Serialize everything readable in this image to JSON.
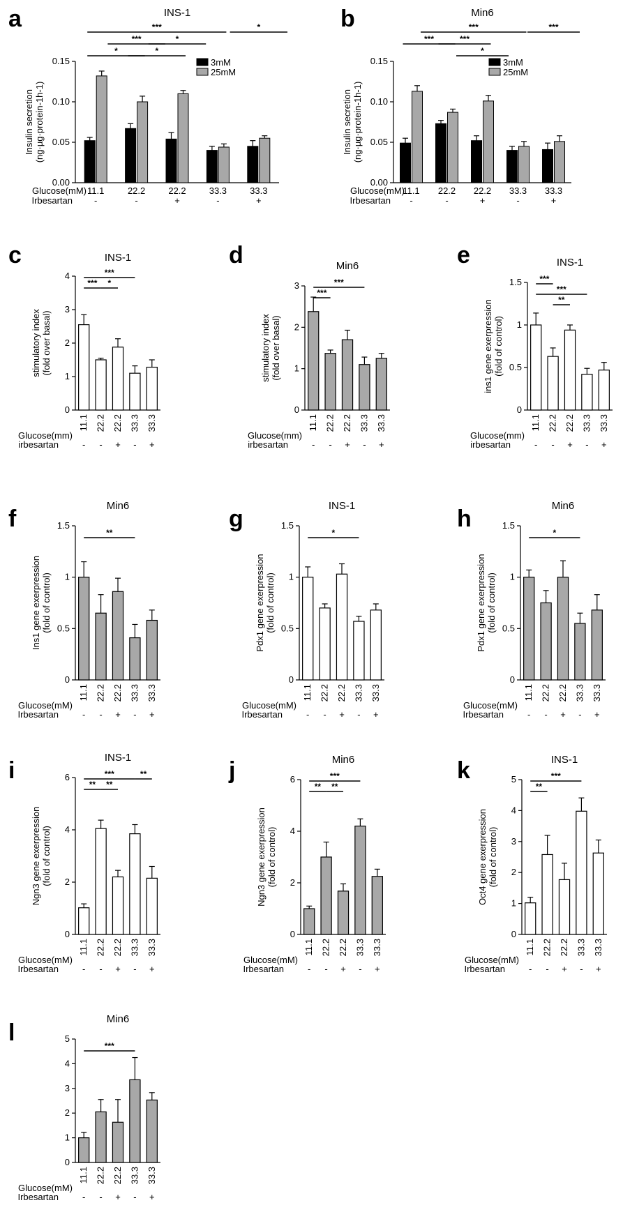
{
  "chart_data": [
    {
      "id": "a",
      "panel_label": "a",
      "type": "bar",
      "title": "INS-1",
      "ylabel": [
        "Insulin secretion",
        "(ng·µg·protein-1h-1)"
      ],
      "ylim": [
        0,
        0.15
      ],
      "yticks": [
        "0.00",
        "0.05",
        "0.10",
        "0.15"
      ],
      "ytick_values": [
        0,
        0.05,
        0.1,
        0.15
      ],
      "groups": [
        "11.1",
        "22.2",
        "22.2",
        "33.3",
        "33.3"
      ],
      "row_labels": [
        "Glucose(mM)",
        "Irbesartan"
      ],
      "irbesartan": [
        "-",
        "-",
        "+",
        "-",
        "+"
      ],
      "series": [
        {
          "name": "3mM",
          "color": "#000000",
          "values": [
            0.052,
            0.067,
            0.054,
            0.04,
            0.045
          ],
          "errors": [
            0.004,
            0.006,
            0.008,
            0.005,
            0.007
          ]
        },
        {
          "name": "25mM",
          "color": "#a8a8a8",
          "values": [
            0.132,
            0.1,
            0.11,
            0.044,
            0.055
          ],
          "errors": [
            0.006,
            0.007,
            0.004,
            0.004,
            0.003
          ]
        }
      ],
      "significance": [
        {
          "label": "***",
          "from": 0,
          "to": 3,
          "level": 3
        },
        {
          "label": "*",
          "from": 3.5,
          "to": 4.5,
          "level": 3
        },
        {
          "label": "***",
          "from": 0.5,
          "to": 1.5,
          "level": 2
        },
        {
          "label": "*",
          "from": 1.5,
          "to": 2.5,
          "level": 2
        },
        {
          "label": "*",
          "from": 0,
          "to": 1,
          "level": 1
        },
        {
          "label": "*",
          "from": 1,
          "to": 2,
          "level": 1
        }
      ]
    },
    {
      "id": "b",
      "panel_label": "b",
      "type": "bar",
      "title": "Min6",
      "ylabel": [
        "Insulin secretion",
        "(ng·µg·protein-1h-1)"
      ],
      "ylim": [
        0,
        0.15
      ],
      "yticks": [
        "0.00",
        "0.05",
        "0.10",
        "0.15"
      ],
      "ytick_values": [
        0,
        0.05,
        0.1,
        0.15
      ],
      "groups": [
        "11.1",
        "22.2",
        "22.2",
        "33.3",
        "33.3"
      ],
      "row_labels": [
        "Glucose(mM)",
        "Irbesartan"
      ],
      "irbesartan": [
        "-",
        "-",
        "+",
        "-",
        "+"
      ],
      "series": [
        {
          "name": "3mM",
          "color": "#000000",
          "values": [
            0.049,
            0.073,
            0.052,
            0.04,
            0.041
          ],
          "errors": [
            0.006,
            0.004,
            0.006,
            0.005,
            0.008
          ]
        },
        {
          "name": "25mM",
          "color": "#a8a8a8",
          "values": [
            0.113,
            0.087,
            0.101,
            0.045,
            0.051
          ],
          "errors": [
            0.007,
            0.004,
            0.007,
            0.006,
            0.007
          ]
        }
      ],
      "significance": [
        {
          "label": "***",
          "from": 0.5,
          "to": 3,
          "level": 3
        },
        {
          "label": "***",
          "from": 3.5,
          "to": 4.5,
          "level": 3
        },
        {
          "label": "***",
          "from": 0,
          "to": 1,
          "level": 2
        },
        {
          "label": "***",
          "from": 1,
          "to": 2,
          "level": 2
        },
        {
          "label": "*",
          "from": 1.5,
          "to": 2.5,
          "level": 1
        }
      ]
    },
    {
      "id": "c",
      "panel_label": "c",
      "type": "bar",
      "title": "INS-1",
      "ylabel": [
        "stimulatory index",
        "(fold over basal)"
      ],
      "ylim": [
        0,
        4
      ],
      "yticks": [
        "0",
        "1",
        "2",
        "3",
        "4"
      ],
      "ytick_values": [
        0,
        1,
        2,
        3,
        4
      ],
      "categories": [
        "11.1",
        "22.2",
        "22.2",
        "33.3",
        "33.3"
      ],
      "row_labels": [
        "Glucose(mm)",
        "irbesartan"
      ],
      "irbesartan": [
        "-",
        "-",
        "+",
        "-",
        "+"
      ],
      "bar_color": "#ffffff",
      "values": [
        2.55,
        1.5,
        1.88,
        1.1,
        1.28
      ],
      "errors": [
        0.3,
        0.05,
        0.25,
        0.22,
        0.22
      ],
      "significance": [
        {
          "label": "***",
          "from": 0,
          "to": 3,
          "level": 2
        },
        {
          "label": "***",
          "from": 0,
          "to": 1,
          "level": 1
        },
        {
          "label": "*",
          "from": 1,
          "to": 2,
          "level": 1
        }
      ]
    },
    {
      "id": "d",
      "panel_label": "d",
      "type": "bar",
      "title": "Min6",
      "ylabel": [
        "stimulatory index",
        "(fold over basal)"
      ],
      "ylim": [
        0,
        3
      ],
      "yticks": [
        "0",
        "1",
        "2",
        "3"
      ],
      "ytick_values": [
        0,
        1,
        2,
        3
      ],
      "categories": [
        "11.1",
        "22.2",
        "22.2",
        "33.3",
        "33.3"
      ],
      "row_labels": [
        "Glucose(mm)",
        "irbesartan"
      ],
      "irbesartan": [
        "-",
        "-",
        "+",
        "-",
        "+"
      ],
      "bar_color": "#a8a8a8",
      "values": [
        2.38,
        1.37,
        1.7,
        1.1,
        1.25
      ],
      "errors": [
        0.35,
        0.08,
        0.23,
        0.18,
        0.12
      ],
      "significance": [
        {
          "label": "***",
          "from": 0,
          "to": 3,
          "level": 2
        },
        {
          "label": "***",
          "from": 0,
          "to": 1,
          "level": 1
        }
      ]
    },
    {
      "id": "e",
      "panel_label": "e",
      "type": "bar",
      "title": "INS-1",
      "ylabel": [
        "ins1 gene exerpression",
        "(fold of control)"
      ],
      "ylim": [
        0,
        1.5
      ],
      "yticks": [
        "0",
        "0.5",
        "1",
        "1.5"
      ],
      "ytick_values": [
        0,
        0.5,
        1,
        1.5
      ],
      "categories": [
        "11.1",
        "22.2",
        "22.2",
        "33.3",
        "33.3"
      ],
      "row_labels": [
        "Glucose(mm)",
        "irbesartan"
      ],
      "irbesartan": [
        "-",
        "-",
        "+",
        "-",
        "+"
      ],
      "bar_color": "#ffffff",
      "values": [
        1.0,
        0.63,
        0.94,
        0.42,
        0.47
      ],
      "errors": [
        0.14,
        0.1,
        0.06,
        0.07,
        0.09
      ],
      "significance": [
        {
          "label": "***",
          "from": 0,
          "to": 1,
          "level": 3
        },
        {
          "label": "***",
          "from": 0,
          "to": 3,
          "level": 2
        },
        {
          "label": "**",
          "from": 1,
          "to": 2,
          "level": 1
        }
      ]
    },
    {
      "id": "f",
      "panel_label": "f",
      "type": "bar",
      "title": "Min6",
      "ylabel": [
        "Ins1 gene exerpression",
        "(fold of control)"
      ],
      "ylim": [
        0,
        1.5
      ],
      "yticks": [
        "0",
        "0.5",
        "1",
        "1.5"
      ],
      "ytick_values": [
        0,
        0.5,
        1,
        1.5
      ],
      "categories": [
        "11.1",
        "22.2",
        "22.2",
        "33.3",
        "33.3"
      ],
      "row_labels": [
        "Glucose(mM)",
        "Irbesartan"
      ],
      "irbesartan": [
        "-",
        "-",
        "+",
        "-",
        "+"
      ],
      "bar_color": "#a8a8a8",
      "values": [
        1.0,
        0.65,
        0.86,
        0.41,
        0.58
      ],
      "errors": [
        0.15,
        0.18,
        0.13,
        0.13,
        0.1
      ],
      "significance": [
        {
          "label": "**",
          "from": 0,
          "to": 3,
          "level": 1
        }
      ]
    },
    {
      "id": "g",
      "panel_label": "g",
      "type": "bar",
      "title": "INS-1",
      "ylabel": [
        "Pdx1 gene exerpression",
        "(fold of control)"
      ],
      "ylim": [
        0,
        1.5
      ],
      "yticks": [
        "0",
        "0.5",
        "1",
        "1.5"
      ],
      "ytick_values": [
        0,
        0.5,
        1,
        1.5
      ],
      "categories": [
        "11.1",
        "22.2",
        "22.2",
        "33.3",
        "33.3"
      ],
      "row_labels": [
        "Glucose(mM)",
        "Irbesartan"
      ],
      "irbesartan": [
        "-",
        "-",
        "+",
        "-",
        "+"
      ],
      "bar_color": "#ffffff",
      "values": [
        1.0,
        0.7,
        1.03,
        0.57,
        0.68
      ],
      "errors": [
        0.1,
        0.04,
        0.1,
        0.05,
        0.06
      ],
      "significance": [
        {
          "label": "*",
          "from": 0,
          "to": 3,
          "level": 1
        }
      ]
    },
    {
      "id": "h",
      "panel_label": "h",
      "type": "bar",
      "title": "Min6",
      "ylabel": [
        "Pdx1 gene exerpression",
        "(fold of control)"
      ],
      "ylim": [
        0,
        1.5
      ],
      "yticks": [
        "0",
        "0.5",
        "1",
        "1.5"
      ],
      "ytick_values": [
        0,
        0.5,
        1,
        1.5
      ],
      "categories": [
        "11.1",
        "22.2",
        "22.2",
        "33.3",
        "33.3"
      ],
      "row_labels": [
        "Glucose(mM)",
        "Irbesartan"
      ],
      "irbesartan": [
        "-",
        "-",
        "+",
        "-",
        "+"
      ],
      "bar_color": "#a8a8a8",
      "values": [
        1.0,
        0.75,
        1.0,
        0.55,
        0.68
      ],
      "errors": [
        0.07,
        0.12,
        0.16,
        0.1,
        0.15
      ],
      "significance": [
        {
          "label": "*",
          "from": 0,
          "to": 3,
          "level": 1
        }
      ]
    },
    {
      "id": "i",
      "panel_label": "i",
      "type": "bar",
      "title": "INS-1",
      "ylabel": [
        "Ngn3 gene exerpression",
        "(fold of control)"
      ],
      "ylim": [
        0,
        6
      ],
      "yticks": [
        "0",
        "2",
        "4",
        "6"
      ],
      "ytick_values": [
        0,
        2,
        4,
        6
      ],
      "categories": [
        "11.1",
        "22.2",
        "22.2",
        "33.3",
        "33.3"
      ],
      "row_labels": [
        "Glucose(mM)",
        "Irbesartan"
      ],
      "irbesartan": [
        "-",
        "-",
        "+",
        "-",
        "+"
      ],
      "bar_color": "#ffffff",
      "values": [
        1.02,
        4.05,
        2.2,
        3.85,
        2.15
      ],
      "errors": [
        0.15,
        0.32,
        0.25,
        0.35,
        0.45
      ],
      "significance": [
        {
          "label": "***",
          "from": 0,
          "to": 3,
          "level": 2
        },
        {
          "label": "**",
          "from": 3,
          "to": 4,
          "level": 2
        },
        {
          "label": "**",
          "from": 0,
          "to": 1,
          "level": 1
        },
        {
          "label": "**",
          "from": 1,
          "to": 2,
          "level": 1
        }
      ]
    },
    {
      "id": "j",
      "panel_label": "j",
      "type": "bar",
      "title": "Min6",
      "ylabel": [
        "Ngn3 gene exerpression",
        "(fold of control)"
      ],
      "ylim": [
        0,
        6
      ],
      "yticks": [
        "0",
        "2",
        "4",
        "6"
      ],
      "ytick_values": [
        0,
        2,
        4,
        6
      ],
      "categories": [
        "11.1",
        "22.2",
        "22.2",
        "33.3",
        "33.3"
      ],
      "row_labels": [
        "Glucose(mM)",
        "Irbesartan"
      ],
      "irbesartan": [
        "-",
        "-",
        "+",
        "-",
        "+"
      ],
      "bar_color": "#a8a8a8",
      "values": [
        1.0,
        3.0,
        1.68,
        4.2,
        2.25
      ],
      "errors": [
        0.1,
        0.58,
        0.28,
        0.28,
        0.28
      ],
      "significance": [
        {
          "label": "***",
          "from": 0,
          "to": 3,
          "level": 2
        },
        {
          "label": "**",
          "from": 0,
          "to": 1,
          "level": 1
        },
        {
          "label": "**",
          "from": 1,
          "to": 2,
          "level": 1
        }
      ]
    },
    {
      "id": "k",
      "panel_label": "k",
      "type": "bar",
      "title": "INS-1",
      "ylabel": [
        "Oct4 gene exerpression",
        "(fold of control)"
      ],
      "ylim": [
        0,
        5
      ],
      "yticks": [
        "0",
        "1",
        "2",
        "3",
        "4",
        "5"
      ],
      "ytick_values": [
        0,
        1,
        2,
        3,
        4,
        5
      ],
      "categories": [
        "11.1",
        "22.2",
        "22.2",
        "33.3",
        "33.3"
      ],
      "row_labels": [
        "Glucose(mM)",
        "Irbesartan"
      ],
      "irbesartan": [
        "-",
        "-",
        "+",
        "-",
        "+"
      ],
      "bar_color": "#ffffff",
      "values": [
        1.02,
        2.58,
        1.77,
        3.98,
        2.63
      ],
      "errors": [
        0.18,
        0.62,
        0.53,
        0.43,
        0.42
      ],
      "significance": [
        {
          "label": "***",
          "from": 0,
          "to": 3,
          "level": 2
        },
        {
          "label": "**",
          "from": 0,
          "to": 1,
          "level": 1
        }
      ]
    },
    {
      "id": "l",
      "panel_label": "l",
      "type": "bar",
      "title": "Min6",
      "ylabel": null,
      "ylim": [
        0,
        5
      ],
      "yticks": [
        "0",
        "1",
        "2",
        "3",
        "4",
        "5"
      ],
      "ytick_values": [
        0,
        1,
        2,
        3,
        4,
        5
      ],
      "categories": [
        "11.1",
        "22.2",
        "22.2",
        "33.3",
        "33.3"
      ],
      "row_labels": [
        "Glucose(mM)",
        "Irbesartan"
      ],
      "irbesartan": [
        "-",
        "-",
        "+",
        "-",
        "+"
      ],
      "bar_color": "#a8a8a8",
      "values": [
        1.0,
        2.05,
        1.63,
        3.35,
        2.53
      ],
      "errors": [
        0.22,
        0.5,
        0.92,
        0.9,
        0.3
      ],
      "significance": [
        {
          "label": "***",
          "from": 0,
          "to": 3,
          "level": 1
        }
      ]
    }
  ]
}
